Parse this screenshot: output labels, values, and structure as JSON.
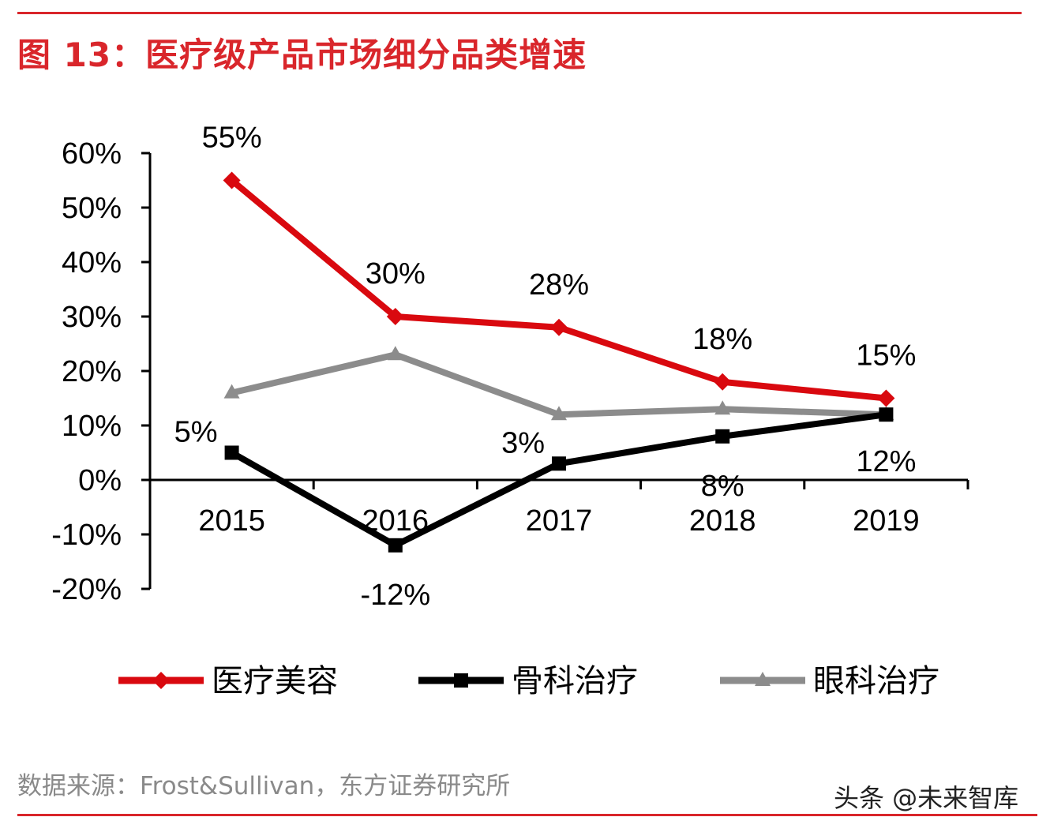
{
  "title": "图 13：医疗级产品市场细分品类增速",
  "source": "数据来源：Frost&Sullivan，东方证券研究所",
  "watermark": "头条 @未来智库",
  "chart_data": {
    "type": "line",
    "title": "图 13：医疗级产品市场细分品类增速",
    "categories": [
      "2015",
      "2016",
      "2017",
      "2018",
      "2019"
    ],
    "ylim": [
      -20,
      60
    ],
    "yticks": [
      60,
      50,
      40,
      30,
      20,
      10,
      0,
      -10,
      -20
    ],
    "ytick_labels": [
      "60%",
      "50%",
      "40%",
      "30%",
      "20%",
      "10%",
      "0%",
      "-10%",
      "-20%"
    ],
    "legend_position": "bottom",
    "series": [
      {
        "name": "医疗美容",
        "color": "#d9090f",
        "marker": "diamond",
        "values": [
          55,
          30,
          28,
          18,
          15
        ],
        "labels": [
          "55%",
          "30%",
          "28%",
          "18%",
          "15%"
        ]
      },
      {
        "name": "骨科治疗",
        "color": "#000000",
        "marker": "square",
        "values": [
          5,
          -12,
          3,
          8,
          12
        ],
        "labels": [
          "5%",
          "-12%",
          "3%",
          "8%",
          "12%"
        ]
      },
      {
        "name": "眼科治疗",
        "color": "#8c8c8c",
        "marker": "triangle",
        "values": [
          16,
          23,
          12,
          13,
          12
        ],
        "labels": []
      }
    ]
  }
}
